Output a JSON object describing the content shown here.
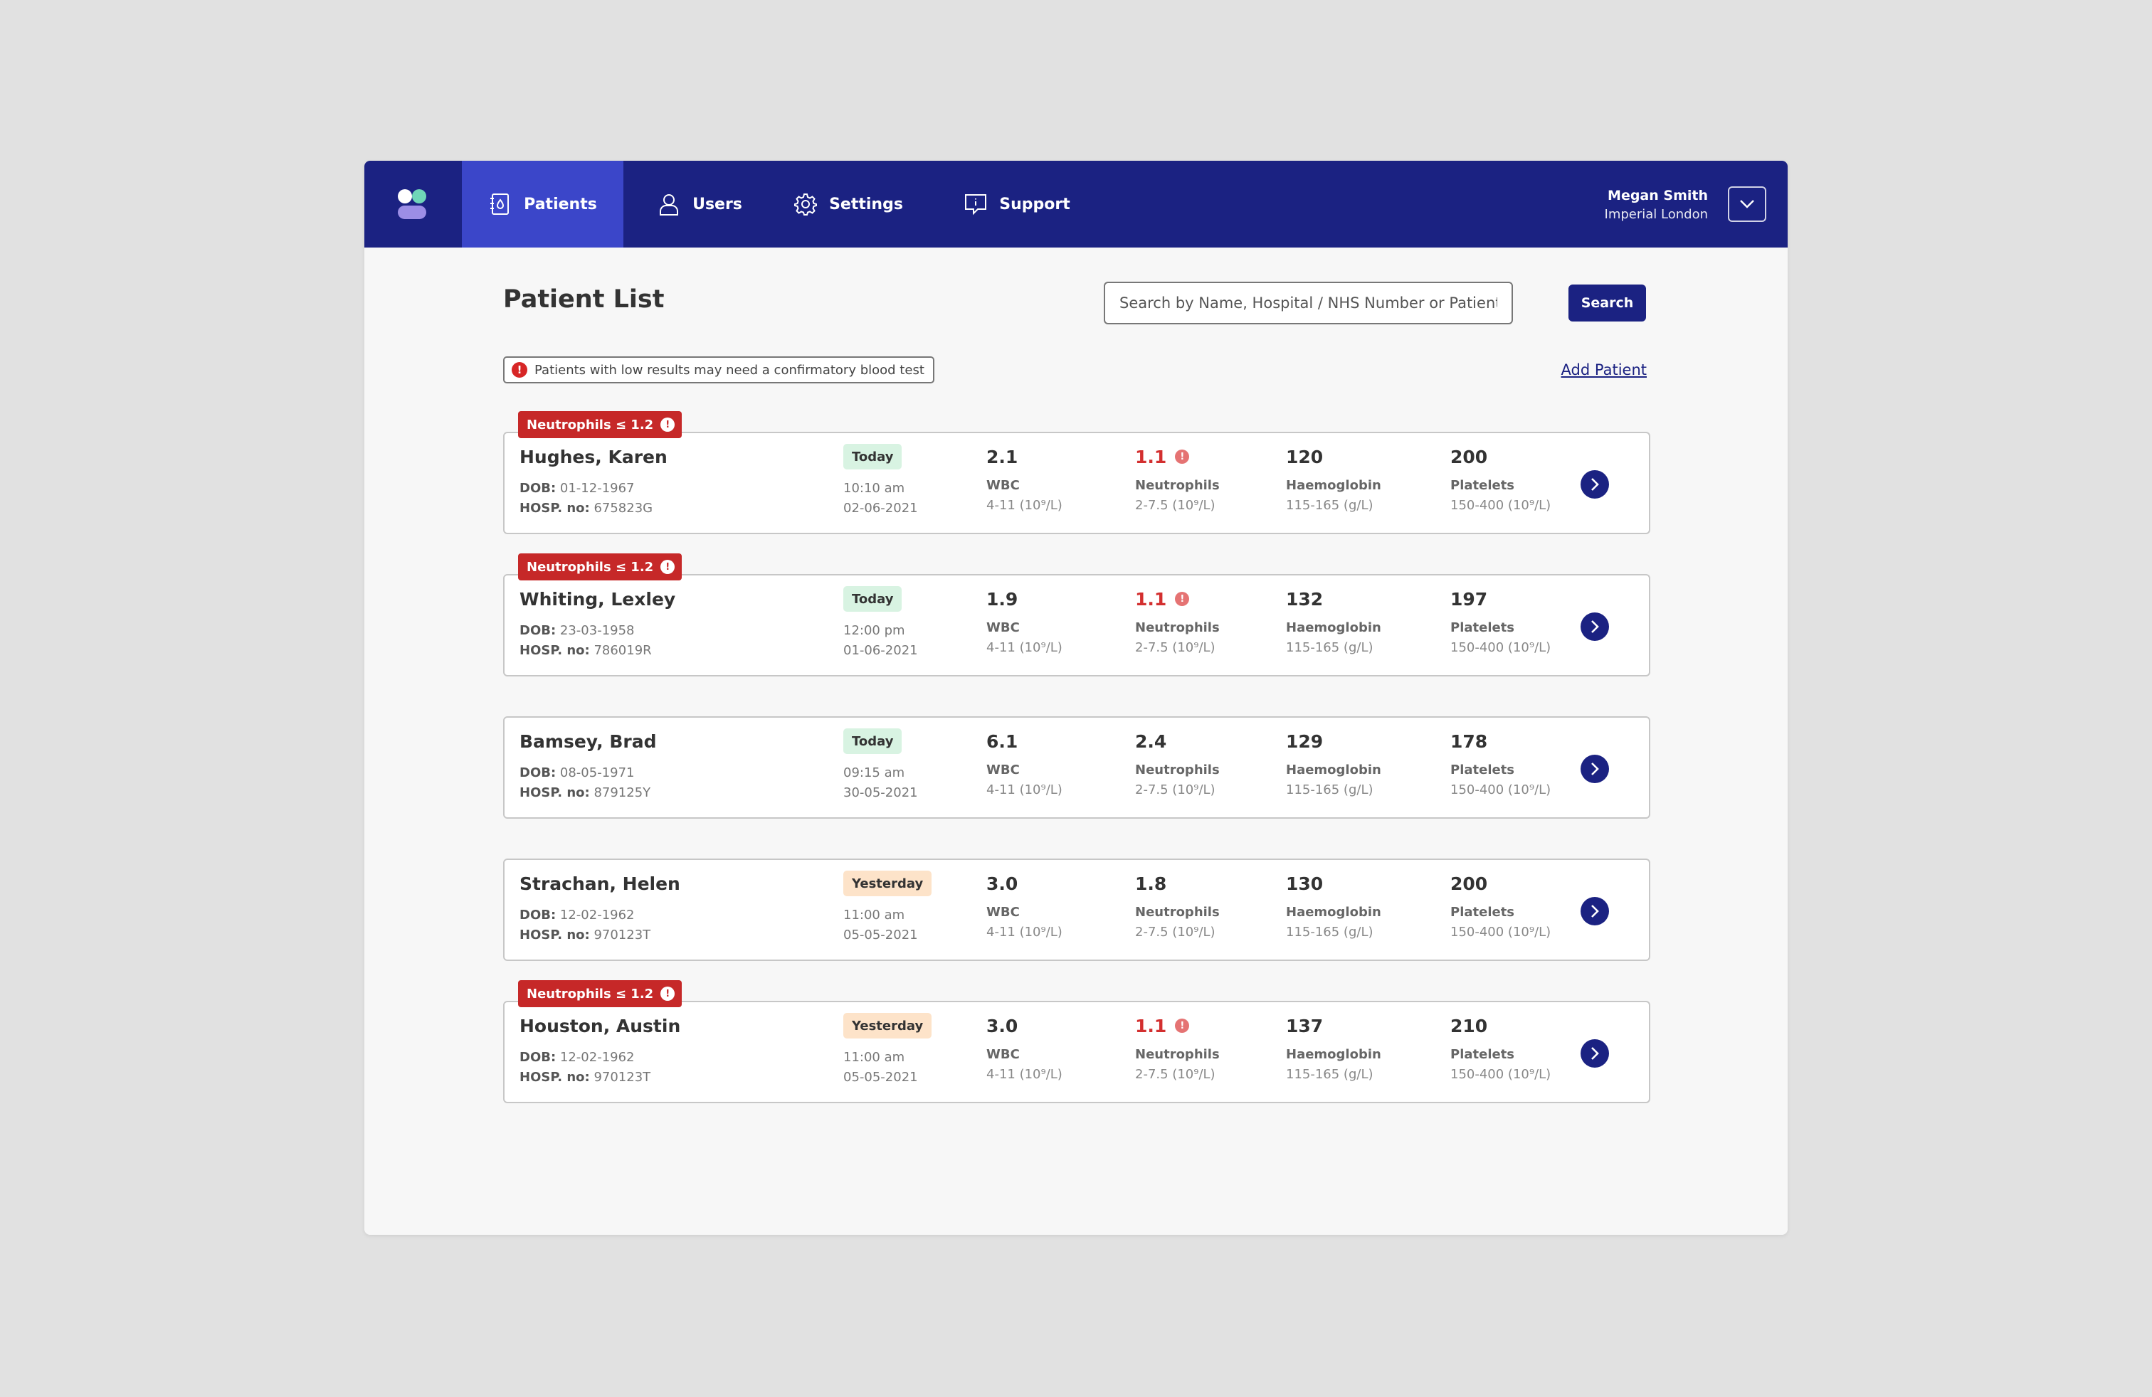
{
  "nav": {
    "items": [
      {
        "label": "Patients",
        "icon": "patient-file-icon",
        "active": true
      },
      {
        "label": "Users",
        "icon": "user-icon",
        "active": false
      },
      {
        "label": "Settings",
        "icon": "gear-icon",
        "active": false
      },
      {
        "label": "Support",
        "icon": "support-message-icon",
        "active": false
      }
    ],
    "user": {
      "name": "Megan Smith",
      "organisation": "Imperial London"
    }
  },
  "page": {
    "title": "Patient List",
    "search_placeholder": "Search by Name, Hospital / NHS Number or Patient I.D",
    "search_button": "Search",
    "notice": "Patients with low results may need a confirmatory blood test",
    "add_patient": "Add Patient"
  },
  "labels": {
    "dob": "DOB:",
    "hosp": "HOSP. no:",
    "wbc": "WBC",
    "neutrophils": "Neutrophils",
    "haemoglobin": "Haemoglobin",
    "platelets": "Platelets",
    "wbc_range": "4-11 (10⁹/L)",
    "neutrophils_range": "2-7.5 (10⁹/L)",
    "haemoglobin_range": "115-165 (g/L)",
    "platelets_range": "150-400 (10⁹/L)",
    "alert_tag": "Neutrophils ≤ 1.2"
  },
  "colors": {
    "brand_navy": "#1b2282",
    "active_nav": "#3b46c9",
    "alert_red": "#c62828",
    "today_bg": "#d8f3e2",
    "yesterday_bg": "#fde3c9"
  },
  "patients": [
    {
      "name": "Hughes, Karen",
      "dob": "01-12-1967",
      "hosp": "675823G",
      "day": "Today",
      "time": "10:10 am",
      "date": "02-06-2021",
      "wbc": "2.1",
      "neutrophils": "1.1",
      "haemoglobin": "120",
      "platelets": "200",
      "alert": true
    },
    {
      "name": "Whiting, Lexley",
      "dob": "23-03-1958",
      "hosp": "786019R",
      "day": "Today",
      "time": "12:00 pm",
      "date": "01-06-2021",
      "wbc": "1.9",
      "neutrophils": "1.1",
      "haemoglobin": "132",
      "platelets": "197",
      "alert": true
    },
    {
      "name": "Bamsey, Brad",
      "dob": "08-05-1971",
      "hosp": "879125Y",
      "day": "Today",
      "time": "09:15 am",
      "date": "30-05-2021",
      "wbc": "6.1",
      "neutrophils": "2.4",
      "haemoglobin": "129",
      "platelets": "178",
      "alert": false
    },
    {
      "name": "Strachan, Helen",
      "dob": "12-02-1962",
      "hosp": "970123T",
      "day": "Yesterday",
      "time": "11:00 am",
      "date": "05-05-2021",
      "wbc": "3.0",
      "neutrophils": "1.8",
      "haemoglobin": "130",
      "platelets": "200",
      "alert": false
    },
    {
      "name": "Houston, Austin",
      "dob": "12-02-1962",
      "hosp": "970123T",
      "day": "Yesterday",
      "time": "11:00 am",
      "date": "05-05-2021",
      "wbc": "3.0",
      "neutrophils": "1.1",
      "haemoglobin": "137",
      "platelets": "210",
      "alert": true
    }
  ]
}
